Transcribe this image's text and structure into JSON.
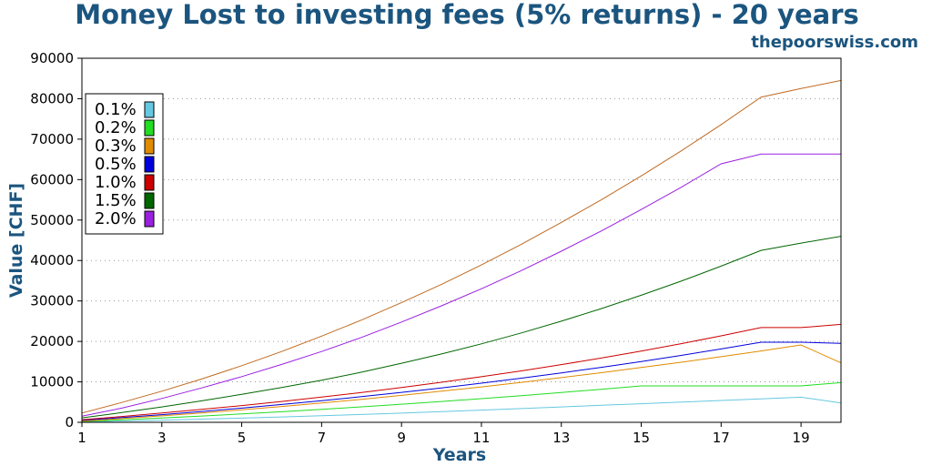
{
  "chart_data": {
    "type": "line",
    "title": "Money Lost to investing fees (5% returns) - 20 years",
    "subtitle": "thepoorswiss.com",
    "xlabel": "Years",
    "ylabel": "Value [CHF]",
    "xlim": [
      1,
      20
    ],
    "ylim": [
      0,
      90000
    ],
    "x_ticks": [
      1,
      3,
      5,
      7,
      9,
      11,
      13,
      15,
      17,
      19
    ],
    "y_ticks": [
      0,
      10000,
      20000,
      30000,
      40000,
      50000,
      60000,
      70000,
      80000,
      90000
    ],
    "grid": "horizontal-dotted",
    "legend_position": "top-left",
    "x": [
      1,
      2,
      3,
      4,
      5,
      6,
      7,
      8,
      9,
      10,
      11,
      12,
      13,
      14,
      15,
      16,
      17,
      18,
      19,
      20
    ],
    "series": [
      {
        "name": "0.1%",
        "color": "#66c8e0",
        "values": [
          100,
          310,
          535,
          780,
          1040,
          1320,
          1620,
          1940,
          2280,
          2640,
          3010,
          3400,
          3800,
          4200,
          4600,
          5000,
          5400,
          5800,
          6200,
          4800
        ]
      },
      {
        "name": "0.2%",
        "color": "#22dd22",
        "values": [
          200,
          620,
          1070,
          1550,
          2070,
          2620,
          3200,
          3820,
          4470,
          5150,
          5860,
          6600,
          7370,
          8170,
          9000,
          9000,
          9000,
          9000,
          9000,
          9800
        ]
      },
      {
        "name": "0.3%",
        "color": "#e08a00",
        "values": [
          300,
          930,
          1600,
          2320,
          3090,
          3910,
          4780,
          5700,
          6670,
          7690,
          8760,
          9880,
          11050,
          12270,
          13540,
          14860,
          16230,
          17650,
          19120,
          14700
        ]
      },
      {
        "name": "0.5%",
        "color": "#0000dd",
        "values": [
          500,
          1180,
          1900,
          2680,
          3510,
          4400,
          5340,
          6340,
          7400,
          8510,
          9680,
          10920,
          12220,
          13590,
          15030,
          16540,
          18130,
          19800,
          19800,
          19500
        ]
      },
      {
        "name": "1.0%",
        "color": "#cc0000",
        "values": [
          650,
          1450,
          2300,
          3200,
          4150,
          5160,
          6240,
          7390,
          8610,
          9900,
          11270,
          12720,
          14260,
          15890,
          17620,
          19450,
          21380,
          23420,
          23420,
          24200
        ]
      },
      {
        "name": "1.5%",
        "color": "#006600",
        "values": [
          1100,
          2400,
          3800,
          5300,
          6900,
          8600,
          10400,
          12400,
          14600,
          16900,
          19400,
          22100,
          25000,
          28100,
          31400,
          34900,
          38600,
          42500,
          44300,
          46000
        ]
      },
      {
        "name": "2.0%",
        "color": "#9a20e0",
        "values": [
          1500,
          3500,
          5900,
          8500,
          11300,
          14300,
          17500,
          21000,
          24800,
          28800,
          33000,
          37500,
          42300,
          47300,
          52600,
          58100,
          63900,
          66300,
          66300,
          66300
        ]
      },
      {
        "name": "",
        "color": "#c06a20",
        "values": [
          2300,
          4900,
          7700,
          10700,
          14000,
          17500,
          21300,
          25300,
          29600,
          34100,
          38900,
          44000,
          49400,
          55000,
          60900,
          67100,
          73600,
          80400,
          82500,
          84500
        ]
      }
    ]
  }
}
